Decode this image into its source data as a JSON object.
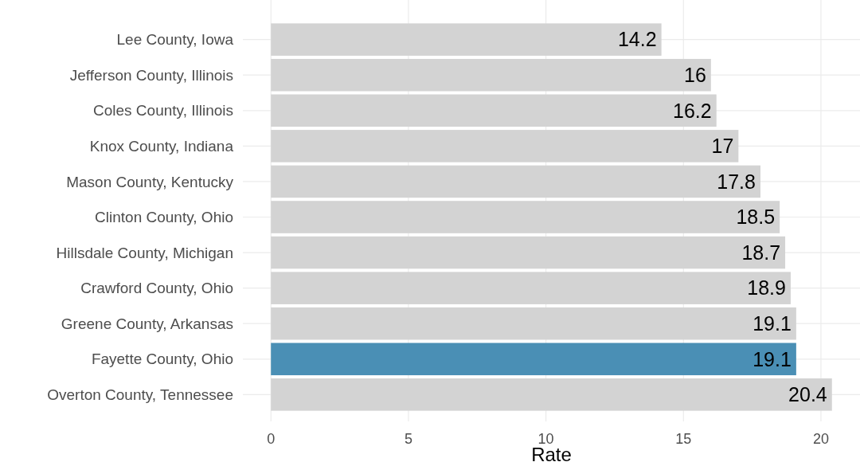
{
  "chart_data": {
    "type": "bar",
    "orientation": "horizontal",
    "xlabel": "Rate",
    "categories": [
      "Lee County, Iowa",
      "Jefferson County, Illinois",
      "Coles County, Illinois",
      "Knox County, Indiana",
      "Mason County, Kentucky",
      "Clinton County, Ohio",
      "Hillsdale County, Michigan",
      "Crawford County, Ohio",
      "Greene County, Arkansas",
      "Fayette County, Ohio",
      "Overton County, Tennessee"
    ],
    "values": [
      14.2,
      16,
      16.2,
      17,
      17.8,
      18.5,
      18.7,
      18.9,
      19.1,
      19.1,
      20.4
    ],
    "colors": [
      "#d3d3d3",
      "#d3d3d3",
      "#d3d3d3",
      "#d3d3d3",
      "#d3d3d3",
      "#d3d3d3",
      "#d3d3d3",
      "#d3d3d3",
      "#d3d3d3",
      "#4a8fb5",
      "#d3d3d3"
    ],
    "xlim": [
      -1.02,
      21.42
    ],
    "xticks": [
      0,
      5,
      10,
      15,
      20
    ],
    "grid": true,
    "data_labels": true
  }
}
